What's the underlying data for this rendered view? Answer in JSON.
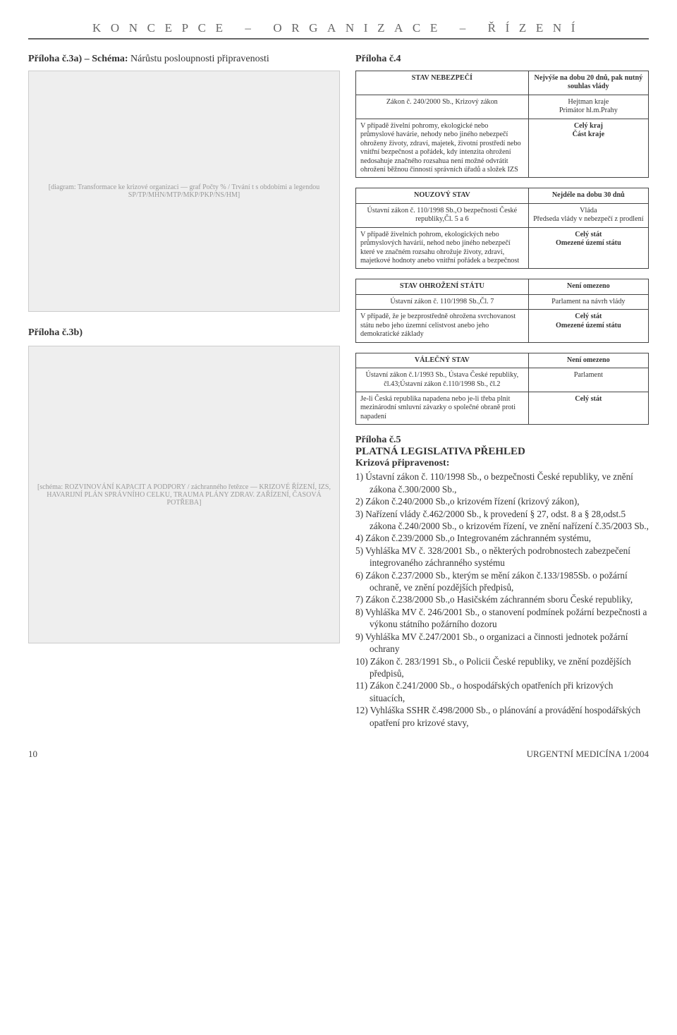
{
  "header": "KONCEPCE – ORGANIZACE – ŘÍZENÍ",
  "left": {
    "title3a_pre": "Příloha č.3a) – Schéma:",
    "title3a_post": " Nárůstu posloupnosti připravenosti",
    "ph3a": "[diagram: Transformace ke krizové organizaci — graf Počty % / Trvání t s obdobími a legendou SP/TP/MHN/MTP/MKP/PKP/NS/HM]",
    "title3b": "Příloha č.3b)",
    "ph3b": "[schéma: ROZVINOVÁNÍ KAPACIT A PODPORY / záchranného řetězce — KRIZOVÉ ŘÍZENÍ, IZS, HAVARIJNÍ PLÁN SPRÁVNÍHO CELKU, TRAUMA PLÁNY ZDRAV. ZAŘÍZENÍ, ČASOVÁ POTŘEBA]"
  },
  "p4": {
    "title": "Příloha č.4",
    "states": [
      {
        "head": "STAV NEBEZPEČÍ",
        "head_r": "Nejvýše na dobu 20 dnů, pak nutný souhlas vlády",
        "law": "Zákon č. 240/2000 Sb., Krizový zákon",
        "law_r": "Hejtman kraje\nPrimátor hl.m.Prahy",
        "cond": "V případě živelní pohromy, ekologické nebo průmyslové havárie, nehody nebo jiného nebezpečí ohroženy životy, zdraví, majetek, životní prostředí nebo vnitřní bezpečnost a pořádek, kdy intenzita ohrožení nedosahuje značného rozsahua není možné odvrátit ohrožení běžnou činností správních úřadů a složek IZS",
        "cond_r": "Celý kraj\nČást kraje"
      },
      {
        "head": "NOUZOVÝ STAV",
        "head_r": "Nejdéle na dobu 30 dnů",
        "law": "Ústavní zákon č. 110/1998 Sb.,O bezpečnosti České republiky,Čl. 5 a 6",
        "law_r": "Vláda\nPředseda vlády v nebezpečí z prodlení",
        "cond": "V případě živelních pohrom, ekologických nebo průmyslových havárií, nehod nebo jiného nebezpečí které ve značném rozsahu ohrožuje životy, zdraví, majetkové hodnoty anebo vnitřní pořádek a bezpečnost",
        "cond_r": "Celý stát\nOmezené území státu"
      },
      {
        "head": "STAV OHROŽENÍ STÁTU",
        "head_r": "Není omezeno",
        "law": "Ústavní zákon č. 110/1998 Sb.,Čl. 7",
        "law_r": "Parlament na návrh vlády",
        "cond": "V případě, že je bezprostředně ohrožena svrchovanost státu nebo jeho územní celistvost anebo jeho demokratické základy",
        "cond_r": "Celý stát\nOmezené území státu"
      },
      {
        "head": "VÁLEČNÝ STAV",
        "head_r": "Není omezeno",
        "law": "Ústavní zákon č.1/1993 Sb., Ústava České republiky, čl.43;Ústavní zákon č.110/1998 Sb., čl.2",
        "law_r": "Parlament",
        "cond": "Je-li Česká republika napadena nebo je-li třeba plnit mezinárodní smluvní závazky o společné obraně proti napadení",
        "cond_r": "Celý stát"
      }
    ]
  },
  "p5": {
    "h1": "Příloha č.5",
    "h2": "PLATNÁ LEGISLATIVA PŘEHLED",
    "h3": "Krizová připravenost:",
    "items": [
      "1) Ústavní zákon č. 110/1998 Sb., o bezpečnosti České republiky, ve znění zákona č.300/2000 Sb.,",
      "2) Zákon č.240/2000 Sb.,o krizovém řízení (krizový zákon),",
      "3) Nařízení vlády č.462/2000 Sb., k provedení § 27, odst. 8 a § 28,odst.5 zákona č.240/2000 Sb., o krizovém řízení, ve znění nařízení č.35/2003 Sb.,",
      "4) Zákon č.239/2000 Sb.,o Integrovaném záchranném systému,",
      "5) Vyhláška MV č. 328/2001 Sb., o některých podrobnostech zabezpečení integrovaného záchranného systému",
      "6) Zákon č.237/2000 Sb., kterým se mění zákon č.133/1985Sb. o požární ochraně, ve znění pozdějších předpisů,",
      "7) Zákon č.238/2000 Sb.,o Hasičském záchranném sboru České republiky,",
      "8) Vyhláška MV č. 246/2001 Sb., o stanovení podmínek požární bezpečnosti a výkonu státního požárního dozoru",
      "9) Vyhláška MV č.247/2001 Sb., o organizaci a činnosti jednotek požární ochrany",
      "10) Zákon č. 283/1991 Sb., o Policii České republiky, ve znění pozdějších předpisů,",
      "11) Zákon č.241/2000 Sb., o hospodářských opatřeních při krizových situacích,",
      "12) Vyhláška SSHR č.498/2000 Sb., o plánování a provádění hospodářských opatření pro krizové stavy,"
    ]
  },
  "footer": {
    "page": "10",
    "issue": "URGENTNÍ MEDICÍNA 1/2004"
  }
}
